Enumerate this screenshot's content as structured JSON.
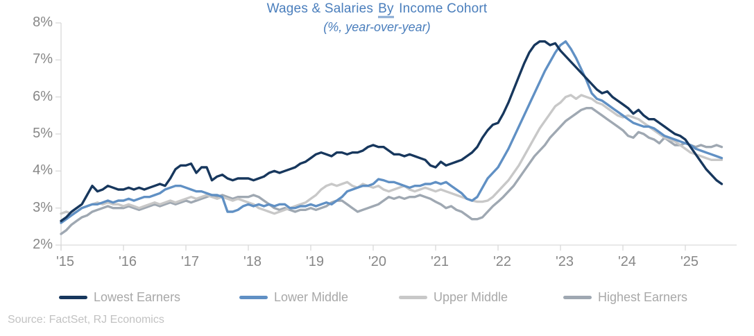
{
  "title": {
    "prefix": "Wages & Salaries",
    "underlined_word": "By",
    "suffix": "Income Cohort",
    "subtitle": "(%, year-over-year)",
    "color": "#4a7ebc"
  },
  "source": "Source: FactSet, RJ Economics",
  "chart_data": {
    "type": "line",
    "title": "Wages & Salaries By Income Cohort",
    "subtitle": "(%, year-over-year)",
    "x_unit": "month",
    "x_start": "2015-01",
    "x_end": "2025-08",
    "x_tick_labels": [
      "'15",
      "'16",
      "'17",
      "'18",
      "'19",
      "'20",
      "'21",
      "'22",
      "'23",
      "'24",
      "'25"
    ],
    "y_tick_labels": [
      "2%",
      "3%",
      "4%",
      "5%",
      "6%",
      "7%",
      "8%"
    ],
    "y_ticks": [
      2,
      3,
      4,
      5,
      6,
      7,
      8
    ],
    "ylim": [
      2,
      8
    ],
    "grid": false,
    "legend_position": "bottom",
    "axis_color": "#d9d9d9",
    "tick_label_color": "#878787",
    "series": [
      {
        "name": "Lowest Earners",
        "color": "#17375d",
        "values": [
          2.65,
          2.75,
          2.9,
          3.0,
          3.1,
          3.35,
          3.6,
          3.45,
          3.5,
          3.6,
          3.55,
          3.5,
          3.5,
          3.55,
          3.5,
          3.55,
          3.5,
          3.55,
          3.6,
          3.65,
          3.6,
          3.8,
          4.05,
          4.15,
          4.15,
          4.2,
          3.95,
          4.1,
          4.1,
          3.75,
          3.85,
          3.9,
          3.8,
          3.75,
          3.8,
          3.8,
          3.8,
          3.75,
          3.8,
          3.85,
          3.95,
          4.0,
          3.95,
          4.0,
          4.05,
          4.1,
          4.2,
          4.25,
          4.35,
          4.45,
          4.5,
          4.45,
          4.4,
          4.5,
          4.5,
          4.45,
          4.5,
          4.5,
          4.55,
          4.65,
          4.7,
          4.65,
          4.65,
          4.55,
          4.45,
          4.45,
          4.4,
          4.45,
          4.4,
          4.35,
          4.3,
          4.15,
          4.1,
          4.25,
          4.15,
          4.2,
          4.25,
          4.3,
          4.4,
          4.5,
          4.65,
          4.9,
          5.1,
          5.25,
          5.3,
          5.55,
          5.85,
          6.2,
          6.55,
          6.9,
          7.2,
          7.4,
          7.5,
          7.5,
          7.4,
          7.45,
          7.25,
          7.1,
          6.95,
          6.8,
          6.65,
          6.5,
          6.35,
          6.2,
          6.1,
          6.15,
          6.0,
          5.9,
          5.8,
          5.7,
          5.55,
          5.65,
          5.5,
          5.4,
          5.4,
          5.3,
          5.2,
          5.1,
          5.0,
          4.95,
          4.85,
          4.65,
          4.45,
          4.25,
          4.05,
          3.9,
          3.75,
          3.65
        ]
      },
      {
        "name": "Lower Middle",
        "color": "#6090c4",
        "values": [
          2.6,
          2.7,
          2.8,
          2.9,
          3.0,
          3.05,
          3.1,
          3.1,
          3.15,
          3.2,
          3.15,
          3.2,
          3.2,
          3.25,
          3.2,
          3.25,
          3.3,
          3.3,
          3.35,
          3.4,
          3.5,
          3.55,
          3.6,
          3.6,
          3.55,
          3.5,
          3.45,
          3.45,
          3.4,
          3.35,
          3.35,
          3.3,
          2.9,
          2.9,
          2.95,
          3.05,
          3.1,
          3.05,
          3.1,
          3.05,
          3.1,
          3.05,
          3.1,
          3.1,
          3.0,
          3.0,
          3.05,
          3.05,
          3.1,
          3.05,
          3.1,
          3.15,
          3.1,
          3.2,
          3.3,
          3.45,
          3.5,
          3.55,
          3.6,
          3.6,
          3.65,
          3.78,
          3.75,
          3.7,
          3.7,
          3.65,
          3.6,
          3.55,
          3.6,
          3.6,
          3.65,
          3.65,
          3.7,
          3.65,
          3.7,
          3.6,
          3.5,
          3.4,
          3.25,
          3.2,
          3.3,
          3.55,
          3.8,
          3.95,
          4.1,
          4.35,
          4.6,
          4.9,
          5.2,
          5.5,
          5.8,
          6.1,
          6.4,
          6.7,
          6.95,
          7.2,
          7.4,
          7.5,
          7.3,
          7.05,
          6.75,
          6.45,
          6.1,
          5.95,
          5.9,
          5.8,
          5.7,
          5.6,
          5.5,
          5.4,
          5.3,
          5.25,
          5.2,
          5.2,
          5.15,
          5.05,
          4.95,
          4.9,
          4.85,
          4.8,
          4.75,
          4.7,
          4.6,
          4.55,
          4.5,
          4.45,
          4.4,
          4.35
        ]
      },
      {
        "name": "Upper Middle",
        "color": "#c8c8c8",
        "values": [
          2.85,
          2.9,
          2.85,
          2.9,
          3.0,
          3.05,
          3.1,
          3.15,
          3.1,
          3.15,
          3.1,
          3.1,
          3.05,
          3.1,
          3.05,
          3.0,
          3.05,
          3.1,
          3.15,
          3.1,
          3.15,
          3.2,
          3.15,
          3.2,
          3.25,
          3.3,
          3.25,
          3.3,
          3.35,
          3.3,
          3.25,
          3.3,
          3.25,
          3.2,
          3.25,
          3.2,
          3.15,
          3.1,
          3.0,
          2.95,
          2.9,
          2.85,
          2.9,
          2.95,
          3.0,
          3.05,
          3.1,
          3.15,
          3.25,
          3.35,
          3.5,
          3.6,
          3.65,
          3.6,
          3.65,
          3.7,
          3.6,
          3.55,
          3.65,
          3.6,
          3.55,
          3.6,
          3.5,
          3.45,
          3.5,
          3.55,
          3.6,
          3.5,
          3.45,
          3.5,
          3.55,
          3.5,
          3.45,
          3.5,
          3.45,
          3.4,
          3.35,
          3.3,
          3.25,
          3.2,
          3.17,
          3.17,
          3.2,
          3.3,
          3.45,
          3.6,
          3.75,
          3.95,
          4.15,
          4.4,
          4.65,
          4.9,
          5.15,
          5.35,
          5.55,
          5.75,
          5.85,
          6.0,
          6.05,
          5.95,
          6.05,
          6.0,
          5.95,
          5.85,
          5.8,
          5.7,
          5.6,
          5.5,
          5.45,
          5.5,
          5.45,
          5.4,
          5.3,
          5.2,
          5.1,
          5.0,
          4.9,
          4.85,
          4.8,
          4.7,
          4.6,
          4.5,
          4.45,
          4.4,
          4.35,
          4.3,
          4.3,
          4.3
        ]
      },
      {
        "name": "Highest Earners",
        "color": "#9fa8b2",
        "values": [
          2.3,
          2.4,
          2.55,
          2.65,
          2.75,
          2.8,
          2.9,
          2.95,
          3.0,
          3.05,
          3.0,
          3.0,
          3.0,
          3.05,
          3.0,
          2.95,
          3.0,
          3.05,
          3.1,
          3.05,
          3.1,
          3.15,
          3.1,
          3.15,
          3.2,
          3.15,
          3.2,
          3.25,
          3.3,
          3.35,
          3.3,
          3.35,
          3.3,
          3.25,
          3.3,
          3.3,
          3.3,
          3.35,
          3.3,
          3.2,
          3.1,
          3.0,
          2.95,
          3.0,
          2.95,
          2.9,
          2.95,
          2.95,
          3.0,
          2.95,
          3.0,
          3.05,
          3.15,
          3.2,
          3.2,
          3.1,
          3.0,
          2.9,
          2.95,
          3.0,
          3.05,
          3.1,
          3.2,
          3.3,
          3.25,
          3.3,
          3.25,
          3.3,
          3.3,
          3.35,
          3.3,
          3.25,
          3.17,
          3.1,
          3.0,
          3.05,
          2.95,
          2.9,
          2.8,
          2.7,
          2.7,
          2.75,
          2.9,
          3.05,
          3.17,
          3.3,
          3.45,
          3.6,
          3.8,
          4.0,
          4.2,
          4.4,
          4.55,
          4.7,
          4.9,
          5.05,
          5.2,
          5.35,
          5.45,
          5.55,
          5.65,
          5.7,
          5.7,
          5.6,
          5.5,
          5.4,
          5.3,
          5.2,
          5.1,
          4.95,
          4.9,
          5.05,
          5.0,
          4.9,
          4.85,
          4.75,
          4.9,
          4.8,
          4.7,
          4.7,
          4.75,
          4.7,
          4.65,
          4.7,
          4.65,
          4.65,
          4.7,
          4.65
        ]
      }
    ]
  }
}
